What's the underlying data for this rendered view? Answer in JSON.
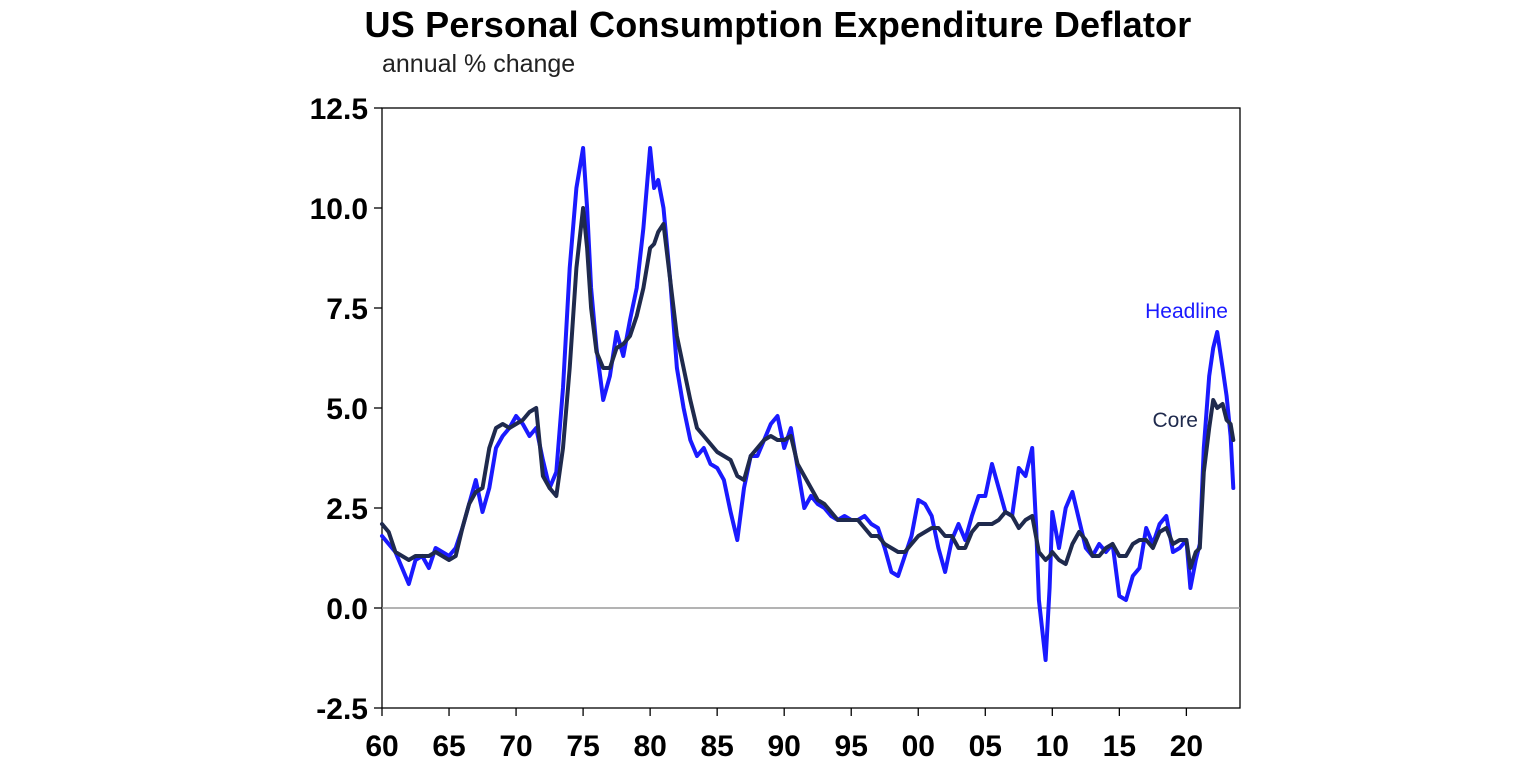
{
  "chart_data": {
    "type": "line",
    "title": "US Personal Consumption Expenditure Deflator",
    "subtitle": "annual % change",
    "xlabel": "",
    "ylabel": "",
    "xlim": [
      1960,
      2024
    ],
    "ylim": [
      -2.5,
      12.5
    ],
    "yticks": [
      "12.5",
      "10.0",
      "7.5",
      "5.0",
      "2.5",
      "0.0",
      "-2.5"
    ],
    "xticks": [
      {
        "year": 1960,
        "label": "60"
      },
      {
        "year": 1965,
        "label": "65"
      },
      {
        "year": 1970,
        "label": "70"
      },
      {
        "year": 1975,
        "label": "75"
      },
      {
        "year": 1980,
        "label": "80"
      },
      {
        "year": 1985,
        "label": "85"
      },
      {
        "year": 1990,
        "label": "90"
      },
      {
        "year": 1995,
        "label": "95"
      },
      {
        "year": 2000,
        "label": "00"
      },
      {
        "year": 2005,
        "label": "05"
      },
      {
        "year": 2010,
        "label": "10"
      },
      {
        "year": 2015,
        "label": "15"
      },
      {
        "year": 2020,
        "label": "20"
      }
    ],
    "legend": "inline labels near line ends",
    "grid": false,
    "series": [
      {
        "name": "Headline",
        "color": "#1a1aff",
        "points": [
          [
            1960.0,
            1.8
          ],
          [
            1960.5,
            1.6
          ],
          [
            1961.0,
            1.4
          ],
          [
            1961.5,
            1.0
          ],
          [
            1962.0,
            0.6
          ],
          [
            1962.5,
            1.2
          ],
          [
            1963.0,
            1.3
          ],
          [
            1963.5,
            1.0
          ],
          [
            1964.0,
            1.5
          ],
          [
            1964.5,
            1.4
          ],
          [
            1965.0,
            1.3
          ],
          [
            1965.5,
            1.5
          ],
          [
            1966.0,
            2.0
          ],
          [
            1966.5,
            2.6
          ],
          [
            1967.0,
            3.2
          ],
          [
            1967.5,
            2.4
          ],
          [
            1968.0,
            3.0
          ],
          [
            1968.5,
            4.0
          ],
          [
            1969.0,
            4.3
          ],
          [
            1969.5,
            4.5
          ],
          [
            1970.0,
            4.8
          ],
          [
            1970.5,
            4.6
          ],
          [
            1971.0,
            4.3
          ],
          [
            1971.5,
            4.5
          ],
          [
            1972.0,
            3.7
          ],
          [
            1972.5,
            3.0
          ],
          [
            1973.0,
            3.4
          ],
          [
            1973.5,
            5.5
          ],
          [
            1974.0,
            8.5
          ],
          [
            1974.5,
            10.5
          ],
          [
            1975.0,
            11.5
          ],
          [
            1975.3,
            10.0
          ],
          [
            1975.6,
            8.0
          ],
          [
            1976.0,
            6.5
          ],
          [
            1976.5,
            5.2
          ],
          [
            1977.0,
            5.8
          ],
          [
            1977.5,
            6.9
          ],
          [
            1978.0,
            6.3
          ],
          [
            1978.5,
            7.2
          ],
          [
            1979.0,
            8.0
          ],
          [
            1979.5,
            9.5
          ],
          [
            1980.0,
            11.5
          ],
          [
            1980.3,
            10.5
          ],
          [
            1980.6,
            10.7
          ],
          [
            1981.0,
            10.0
          ],
          [
            1981.5,
            8.2
          ],
          [
            1982.0,
            6.0
          ],
          [
            1982.5,
            5.0
          ],
          [
            1983.0,
            4.2
          ],
          [
            1983.5,
            3.8
          ],
          [
            1984.0,
            4.0
          ],
          [
            1984.5,
            3.6
          ],
          [
            1985.0,
            3.5
          ],
          [
            1985.5,
            3.2
          ],
          [
            1986.0,
            2.4
          ],
          [
            1986.5,
            1.7
          ],
          [
            1987.0,
            3.0
          ],
          [
            1987.5,
            3.8
          ],
          [
            1988.0,
            3.8
          ],
          [
            1988.5,
            4.2
          ],
          [
            1989.0,
            4.6
          ],
          [
            1989.5,
            4.8
          ],
          [
            1990.0,
            4.0
          ],
          [
            1990.5,
            4.5
          ],
          [
            1991.0,
            3.5
          ],
          [
            1991.5,
            2.5
          ],
          [
            1992.0,
            2.8
          ],
          [
            1992.5,
            2.6
          ],
          [
            1993.0,
            2.5
          ],
          [
            1993.5,
            2.3
          ],
          [
            1994.0,
            2.2
          ],
          [
            1994.5,
            2.3
          ],
          [
            1995.0,
            2.2
          ],
          [
            1995.5,
            2.2
          ],
          [
            1996.0,
            2.3
          ],
          [
            1996.5,
            2.1
          ],
          [
            1997.0,
            2.0
          ],
          [
            1997.5,
            1.5
          ],
          [
            1998.0,
            0.9
          ],
          [
            1998.5,
            0.8
          ],
          [
            1999.0,
            1.3
          ],
          [
            1999.5,
            1.8
          ],
          [
            2000.0,
            2.7
          ],
          [
            2000.5,
            2.6
          ],
          [
            2001.0,
            2.3
          ],
          [
            2001.5,
            1.5
          ],
          [
            2002.0,
            0.9
          ],
          [
            2002.5,
            1.7
          ],
          [
            2003.0,
            2.1
          ],
          [
            2003.5,
            1.7
          ],
          [
            2004.0,
            2.3
          ],
          [
            2004.5,
            2.8
          ],
          [
            2005.0,
            2.8
          ],
          [
            2005.5,
            3.6
          ],
          [
            2006.0,
            3.0
          ],
          [
            2006.5,
            2.4
          ],
          [
            2007.0,
            2.3
          ],
          [
            2007.5,
            3.5
          ],
          [
            2008.0,
            3.3
          ],
          [
            2008.5,
            4.0
          ],
          [
            2008.8,
            2.0
          ],
          [
            2009.0,
            0.2
          ],
          [
            2009.5,
            -1.3
          ],
          [
            2009.8,
            0.5
          ],
          [
            2010.0,
            2.4
          ],
          [
            2010.5,
            1.5
          ],
          [
            2011.0,
            2.5
          ],
          [
            2011.5,
            2.9
          ],
          [
            2012.0,
            2.2
          ],
          [
            2012.5,
            1.5
          ],
          [
            2013.0,
            1.3
          ],
          [
            2013.5,
            1.6
          ],
          [
            2014.0,
            1.4
          ],
          [
            2014.5,
            1.6
          ],
          [
            2015.0,
            0.3
          ],
          [
            2015.5,
            0.2
          ],
          [
            2016.0,
            0.8
          ],
          [
            2016.5,
            1.0
          ],
          [
            2017.0,
            2.0
          ],
          [
            2017.5,
            1.6
          ],
          [
            2018.0,
            2.1
          ],
          [
            2018.5,
            2.3
          ],
          [
            2019.0,
            1.4
          ],
          [
            2019.5,
            1.5
          ],
          [
            2020.0,
            1.7
          ],
          [
            2020.3,
            0.5
          ],
          [
            2020.7,
            1.2
          ],
          [
            2021.0,
            1.6
          ],
          [
            2021.3,
            4.0
          ],
          [
            2021.7,
            5.8
          ],
          [
            2022.0,
            6.5
          ],
          [
            2022.3,
            6.9
          ],
          [
            2022.7,
            6.0
          ],
          [
            2023.0,
            5.3
          ],
          [
            2023.3,
            4.3
          ],
          [
            2023.5,
            3.0
          ]
        ]
      },
      {
        "name": "Core",
        "color": "#1f2a4d",
        "points": [
          [
            1960.0,
            2.1
          ],
          [
            1960.5,
            1.9
          ],
          [
            1961.0,
            1.4
          ],
          [
            1961.5,
            1.3
          ],
          [
            1962.0,
            1.2
          ],
          [
            1962.5,
            1.3
          ],
          [
            1963.0,
            1.3
          ],
          [
            1963.5,
            1.3
          ],
          [
            1964.0,
            1.4
          ],
          [
            1964.5,
            1.3
          ],
          [
            1965.0,
            1.2
          ],
          [
            1965.5,
            1.3
          ],
          [
            1966.0,
            2.0
          ],
          [
            1966.5,
            2.6
          ],
          [
            1967.0,
            2.9
          ],
          [
            1967.5,
            3.0
          ],
          [
            1968.0,
            4.0
          ],
          [
            1968.5,
            4.5
          ],
          [
            1969.0,
            4.6
          ],
          [
            1969.5,
            4.5
          ],
          [
            1970.0,
            4.6
          ],
          [
            1970.5,
            4.7
          ],
          [
            1971.0,
            4.9
          ],
          [
            1971.5,
            5.0
          ],
          [
            1972.0,
            3.3
          ],
          [
            1972.5,
            3.0
          ],
          [
            1973.0,
            2.8
          ],
          [
            1973.5,
            4.0
          ],
          [
            1974.0,
            6.0
          ],
          [
            1974.5,
            8.5
          ],
          [
            1975.0,
            10.0
          ],
          [
            1975.3,
            9.0
          ],
          [
            1975.6,
            7.5
          ],
          [
            1976.0,
            6.4
          ],
          [
            1976.5,
            6.0
          ],
          [
            1977.0,
            6.0
          ],
          [
            1977.5,
            6.5
          ],
          [
            1978.0,
            6.6
          ],
          [
            1978.5,
            6.8
          ],
          [
            1979.0,
            7.3
          ],
          [
            1979.5,
            8.0
          ],
          [
            1980.0,
            9.0
          ],
          [
            1980.3,
            9.1
          ],
          [
            1980.6,
            9.4
          ],
          [
            1981.0,
            9.6
          ],
          [
            1981.5,
            8.2
          ],
          [
            1982.0,
            6.8
          ],
          [
            1982.5,
            6.0
          ],
          [
            1983.0,
            5.2
          ],
          [
            1983.5,
            4.5
          ],
          [
            1984.0,
            4.3
          ],
          [
            1984.5,
            4.1
          ],
          [
            1985.0,
            3.9
          ],
          [
            1985.5,
            3.8
          ],
          [
            1986.0,
            3.7
          ],
          [
            1986.5,
            3.3
          ],
          [
            1987.0,
            3.2
          ],
          [
            1987.5,
            3.8
          ],
          [
            1988.0,
            4.0
          ],
          [
            1988.5,
            4.2
          ],
          [
            1989.0,
            4.3
          ],
          [
            1989.5,
            4.2
          ],
          [
            1990.0,
            4.2
          ],
          [
            1990.5,
            4.3
          ],
          [
            1991.0,
            3.6
          ],
          [
            1991.5,
            3.3
          ],
          [
            1992.0,
            3.0
          ],
          [
            1992.5,
            2.7
          ],
          [
            1993.0,
            2.6
          ],
          [
            1993.5,
            2.4
          ],
          [
            1994.0,
            2.2
          ],
          [
            1994.5,
            2.2
          ],
          [
            1995.0,
            2.2
          ],
          [
            1995.5,
            2.2
          ],
          [
            1996.0,
            2.0
          ],
          [
            1996.5,
            1.8
          ],
          [
            1997.0,
            1.8
          ],
          [
            1997.5,
            1.6
          ],
          [
            1998.0,
            1.5
          ],
          [
            1998.5,
            1.4
          ],
          [
            1999.0,
            1.4
          ],
          [
            1999.5,
            1.6
          ],
          [
            2000.0,
            1.8
          ],
          [
            2000.5,
            1.9
          ],
          [
            2001.0,
            2.0
          ],
          [
            2001.5,
            2.0
          ],
          [
            2002.0,
            1.8
          ],
          [
            2002.5,
            1.8
          ],
          [
            2003.0,
            1.5
          ],
          [
            2003.5,
            1.5
          ],
          [
            2004.0,
            1.9
          ],
          [
            2004.5,
            2.1
          ],
          [
            2005.0,
            2.1
          ],
          [
            2005.5,
            2.1
          ],
          [
            2006.0,
            2.2
          ],
          [
            2006.5,
            2.4
          ],
          [
            2007.0,
            2.3
          ],
          [
            2007.5,
            2.0
          ],
          [
            2008.0,
            2.2
          ],
          [
            2008.5,
            2.3
          ],
          [
            2009.0,
            1.4
          ],
          [
            2009.5,
            1.2
          ],
          [
            2009.8,
            1.3
          ],
          [
            2010.0,
            1.4
          ],
          [
            2010.5,
            1.2
          ],
          [
            2011.0,
            1.1
          ],
          [
            2011.5,
            1.6
          ],
          [
            2012.0,
            1.9
          ],
          [
            2012.5,
            1.7
          ],
          [
            2013.0,
            1.3
          ],
          [
            2013.5,
            1.3
          ],
          [
            2014.0,
            1.5
          ],
          [
            2014.5,
            1.6
          ],
          [
            2015.0,
            1.3
          ],
          [
            2015.5,
            1.3
          ],
          [
            2016.0,
            1.6
          ],
          [
            2016.5,
            1.7
          ],
          [
            2017.0,
            1.7
          ],
          [
            2017.5,
            1.5
          ],
          [
            2018.0,
            1.9
          ],
          [
            2018.5,
            2.0
          ],
          [
            2019.0,
            1.6
          ],
          [
            2019.5,
            1.7
          ],
          [
            2020.0,
            1.7
          ],
          [
            2020.3,
            1.0
          ],
          [
            2020.7,
            1.4
          ],
          [
            2021.0,
            1.5
          ],
          [
            2021.3,
            3.4
          ],
          [
            2021.7,
            4.5
          ],
          [
            2022.0,
            5.2
          ],
          [
            2022.3,
            5.0
          ],
          [
            2022.7,
            5.1
          ],
          [
            2023.0,
            4.7
          ],
          [
            2023.3,
            4.6
          ],
          [
            2023.5,
            4.2
          ]
        ]
      }
    ]
  }
}
